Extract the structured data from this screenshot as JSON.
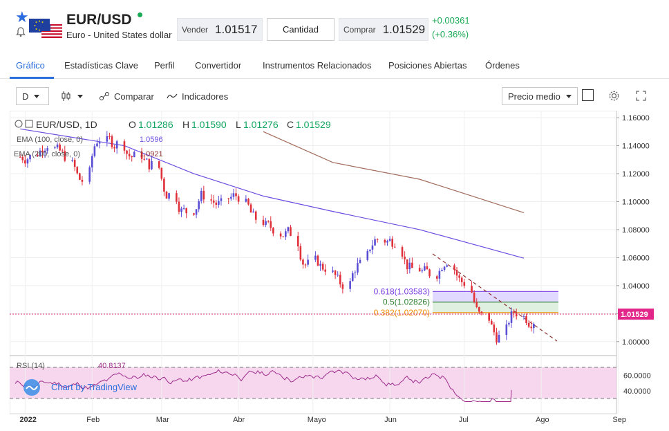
{
  "header": {
    "symbol": "EUR/USD",
    "name": "Euro - United States dollar",
    "sell_label": "Vender",
    "sell_price": "1.01517",
    "quantity_label": "Cantidad",
    "buy_label": "Comprar",
    "buy_price": "1.01529",
    "change_abs": "+0.00361",
    "change_pct": "(+0.36%)",
    "colors": {
      "up": "#1aaa55",
      "accent": "#2a6fdc"
    }
  },
  "tabs": [
    {
      "label": "Gráfico",
      "active": true
    },
    {
      "label": "Estadísticas Clave"
    },
    {
      "label": "Perfil"
    },
    {
      "label": "Convertidor"
    },
    {
      "label": "Instrumentos Relacionados"
    },
    {
      "label": "Posiciones Abiertas"
    },
    {
      "label": "Órdenes"
    }
  ],
  "toolbar": {
    "interval": "D",
    "compare_label": "Comparar",
    "indicators_label": "Indicadores",
    "price_type": "Precio medio"
  },
  "chart": {
    "legend": {
      "symbol_line": "EUR/USD, 1D",
      "o_label": "O",
      "o_value": "1.01286",
      "h_label": "H",
      "h_value": "1.01590",
      "l_label": "L",
      "l_value": "1.01276",
      "c_label": "C",
      "c_value": "1.01529",
      "ema100_label": "EMA (100, close, 0)",
      "ema100_value": "1.0596",
      "ema200_label": "EMA (200, close, 0)",
      "ema200_value": "1.0921",
      "rsi_label": "RSI (14)",
      "rsi_value": "40.8137"
    },
    "watermark": "Chart by TradingView",
    "last_price_label": "1.01529",
    "fib_levels": [
      {
        "label": "0.618(1.03583)",
        "value": 1.03583,
        "color": "#7b3fe4"
      },
      {
        "label": "0.5(1.02826)",
        "value": 1.02826,
        "color": "#2e7d32"
      },
      {
        "label": "0.382(1.02070)",
        "value": 1.0207,
        "color": "#f08c00"
      }
    ],
    "price_axis": [
      "1.16000",
      "1.14000",
      "1.12000",
      "1.10000",
      "1.08000",
      "1.06000",
      "1.04000",
      "1.02000",
      "1.00000"
    ],
    "rsi_axis": [
      "60.0000",
      "40.0000"
    ],
    "time_axis": [
      "2022",
      "Feb",
      "Mar",
      "Abr",
      "Mayo",
      "Jun",
      "Jul",
      "Ago",
      "Sep"
    ]
  },
  "chart_data": {
    "type": "line",
    "title": "EUR/USD, 1D",
    "ylim": [
      0.99,
      1.165
    ],
    "series": [
      {
        "name": "EUR/USD",
        "x": [
          "2022-01-03",
          "2022-01-10",
          "2022-01-17",
          "2022-01-24",
          "2022-01-31",
          "2022-02-07",
          "2022-02-14",
          "2022-02-21",
          "2022-02-28",
          "2022-03-07",
          "2022-03-14",
          "2022-03-21",
          "2022-03-28",
          "2022-04-04",
          "2022-04-11",
          "2022-04-18",
          "2022-04-25",
          "2022-05-02",
          "2022-05-09",
          "2022-05-16",
          "2022-05-23",
          "2022-05-30",
          "2022-06-06",
          "2022-06-13",
          "2022-06-20",
          "2022-06-27",
          "2022-07-04",
          "2022-07-11",
          "2022-07-18",
          "2022-07-25"
        ],
        "values": [
          1.132,
          1.141,
          1.133,
          1.115,
          1.145,
          1.141,
          1.132,
          1.126,
          1.105,
          1.093,
          1.105,
          1.098,
          1.104,
          1.088,
          1.081,
          1.078,
          1.055,
          1.053,
          1.041,
          1.055,
          1.073,
          1.072,
          1.052,
          1.049,
          1.058,
          1.042,
          1.018,
          1.003,
          1.021,
          1.015
        ]
      },
      {
        "name": "EMA (100, close, 0)",
        "x": [
          "2022-01-03",
          "2022-02-14",
          "2022-03-14",
          "2022-04-11",
          "2022-05-09",
          "2022-06-13",
          "2022-07-25"
        ],
        "values": [
          1.152,
          1.14,
          1.12,
          1.104,
          1.093,
          1.08,
          1.0596
        ]
      },
      {
        "name": "EMA (200, close, 0)",
        "x": [
          "2022-04-11",
          "2022-05-09",
          "2022-06-13",
          "2022-07-25"
        ],
        "values": [
          1.15,
          1.128,
          1.116,
          1.0921
        ]
      }
    ],
    "rsi": {
      "name": "RSI (14)",
      "last": 40.8137,
      "ylim": [
        20,
        80
      ]
    }
  }
}
